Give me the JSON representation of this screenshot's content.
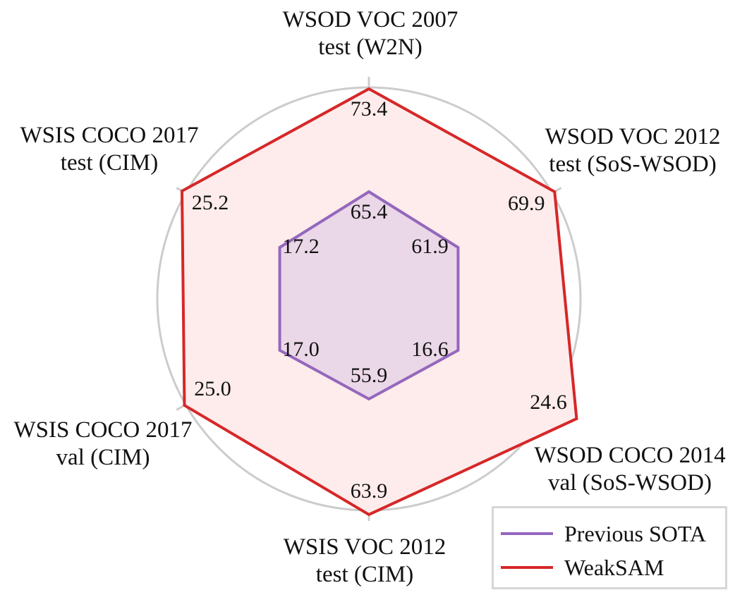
{
  "chart_data": {
    "type": "radar",
    "axes": [
      {
        "label": [
          "WSOD VOC 2007",
          "test (W2N)"
        ]
      },
      {
        "label": [
          "WSOD VOC 2012",
          "test (SoS-WSOD)"
        ]
      },
      {
        "label": [
          "WSOD COCO 2014",
          "val (SoS-WSOD)"
        ]
      },
      {
        "label": [
          "WSIS VOC 2012",
          "test (CIM)"
        ]
      },
      {
        "label": [
          "WSIS COCO 2017",
          "val (CIM)"
        ]
      },
      {
        "label": [
          "WSIS COCO 2017",
          "test (CIM)"
        ]
      }
    ],
    "series": [
      {
        "name": "Previous SOTA",
        "values": [
          65.4,
          61.9,
          16.6,
          55.9,
          17.0,
          17.2
        ],
        "color": "#9467bd",
        "fill": "#e6d3e6"
      },
      {
        "name": "WeakSAM",
        "values": [
          73.4,
          69.9,
          24.6,
          63.9,
          25.0,
          25.2
        ],
        "color": "#d62728",
        "fill": "#fdeceb"
      }
    ],
    "value_labels": {
      "Previous SOTA": [
        "65.4",
        "61.9",
        "16.6",
        "55.9",
        "17.0",
        "17.2"
      ],
      "WeakSAM": [
        "73.4",
        "69.9",
        "24.6",
        "63.9",
        "25.0",
        "25.2"
      ]
    },
    "grid_color": "#cccccc",
    "legend_placement": "bottom-right"
  }
}
